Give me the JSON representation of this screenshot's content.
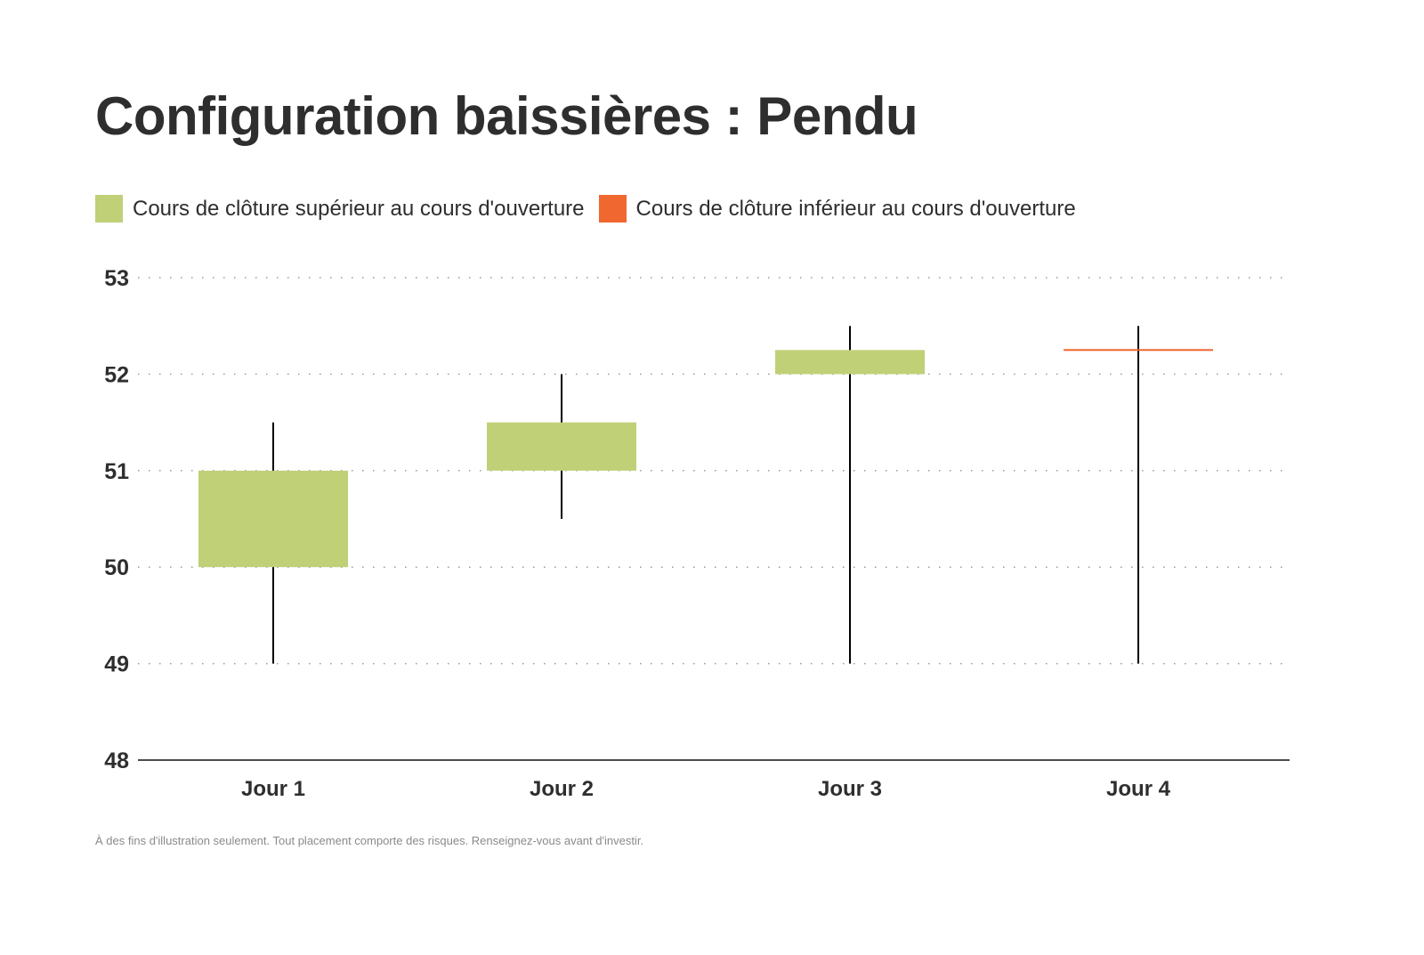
{
  "title": "Configuration baissières : Pendu",
  "legend": [
    {
      "label": "Cours de clôture supérieur au cours d'ouverture",
      "color": "#bfd077"
    },
    {
      "label": "Cours de clôture inférieur au cours d'ouverture",
      "color": "#f0672f"
    }
  ],
  "footer": "À des fins d'illustration seulement. Tout placement comporte des risques. Renseignez-vous avant d'investir.",
  "chart_data": {
    "type": "candlestick",
    "title": "Configuration baissières : Pendu",
    "xlabel": "",
    "ylabel": "",
    "categories": [
      "Jour 1",
      "Jour 2",
      "Jour 3",
      "Jour 4"
    ],
    "y_ticks": [
      48,
      49,
      50,
      51,
      52,
      53
    ],
    "ylim": [
      48,
      53
    ],
    "grid": "horizontal dotted",
    "legend_position": "top",
    "series": [
      {
        "name": "Jour 1",
        "open": 50,
        "close": 51,
        "high": 51.5,
        "low": 49,
        "direction": "up"
      },
      {
        "name": "Jour 2",
        "open": 51,
        "close": 51.5,
        "high": 52,
        "low": 50.5,
        "direction": "up"
      },
      {
        "name": "Jour 3",
        "open": 52,
        "close": 52.25,
        "high": 52.5,
        "low": 49,
        "direction": "up"
      },
      {
        "name": "Jour 4",
        "open": 52.25,
        "close": 52.25,
        "high": 52.5,
        "low": 49,
        "direction": "down"
      }
    ],
    "colors": {
      "up": "#bfd077",
      "down": "#f0672f",
      "wick": "#000000"
    }
  }
}
